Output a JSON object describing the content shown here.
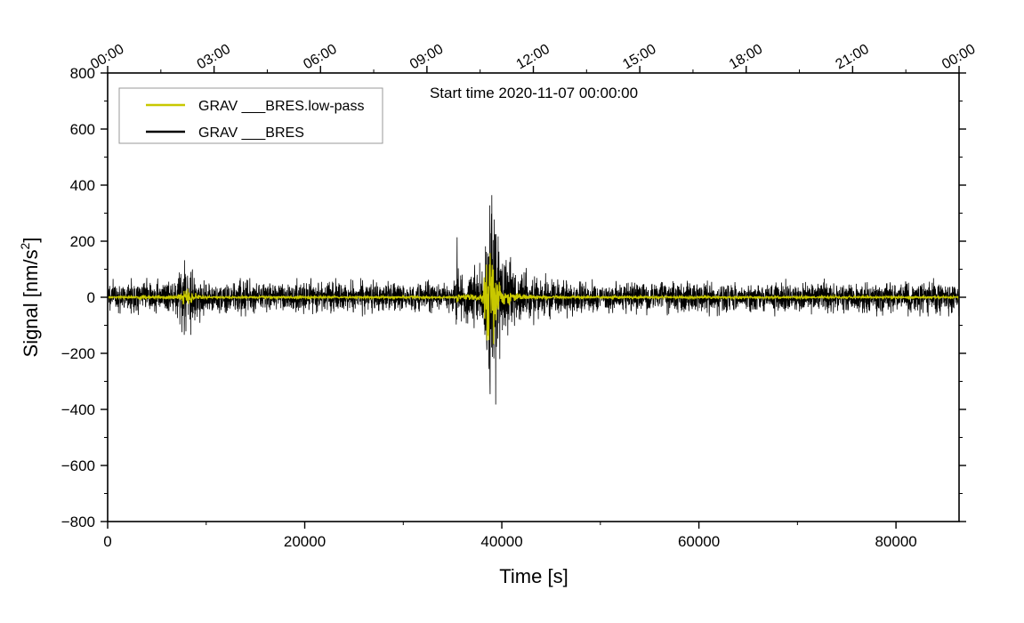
{
  "chart_data": {
    "type": "line",
    "title": "Start time 2020-11-07 00:00:00",
    "xlabel": "Time [s]",
    "ylabel": "Signal [nm/s",
    "ylabel_sup": "2",
    "ylabel_end": "]",
    "xlim": [
      0,
      86400
    ],
    "ylim": [
      -800,
      800
    ],
    "x_ticks": [
      0,
      20000,
      40000,
      60000,
      80000
    ],
    "x_tick_labels": [
      "0",
      "20000",
      "40000",
      "60000",
      "80000"
    ],
    "y_ticks": [
      -800,
      -600,
      -400,
      -200,
      0,
      200,
      400,
      600,
      800
    ],
    "y_tick_labels": [
      "−800",
      "−600",
      "−400",
      "−200",
      "0",
      "200",
      "400",
      "600",
      "800"
    ],
    "top_axis_labels": [
      "00:00",
      "03:00",
      "06:00",
      "09:00",
      "12:00",
      "15:00",
      "18:00",
      "21:00",
      "00:00"
    ],
    "legend_position": "top-left",
    "series": [
      {
        "name": "GRAV ___BRES",
        "color": "#000000",
        "envelope_t": [
          0,
          3000,
          3500,
          4000,
          7000,
          7800,
          8300,
          9500,
          10500,
          35300,
          35500,
          35700,
          38000,
          38800,
          39300,
          40000,
          42000,
          45000,
          50000,
          86400
        ],
        "envelope_amp": [
          65,
          65,
          75,
          65,
          70,
          190,
          150,
          80,
          65,
          65,
          240,
          90,
          120,
          480,
          440,
          200,
          110,
          75,
          65,
          65
        ]
      },
      {
        "name": "GRAV ___BRES.low-pass",
        "color": "#c8c800",
        "envelope_t": [
          0,
          3000,
          3500,
          4000,
          7000,
          7800,
          8300,
          9500,
          10500,
          35300,
          35500,
          35700,
          38000,
          38500,
          39300,
          40000,
          42000,
          45000,
          86400
        ],
        "envelope_amp": [
          5,
          5,
          16,
          5,
          8,
          40,
          30,
          8,
          5,
          5,
          30,
          10,
          20,
          210,
          150,
          45,
          12,
          6,
          5
        ]
      }
    ]
  }
}
